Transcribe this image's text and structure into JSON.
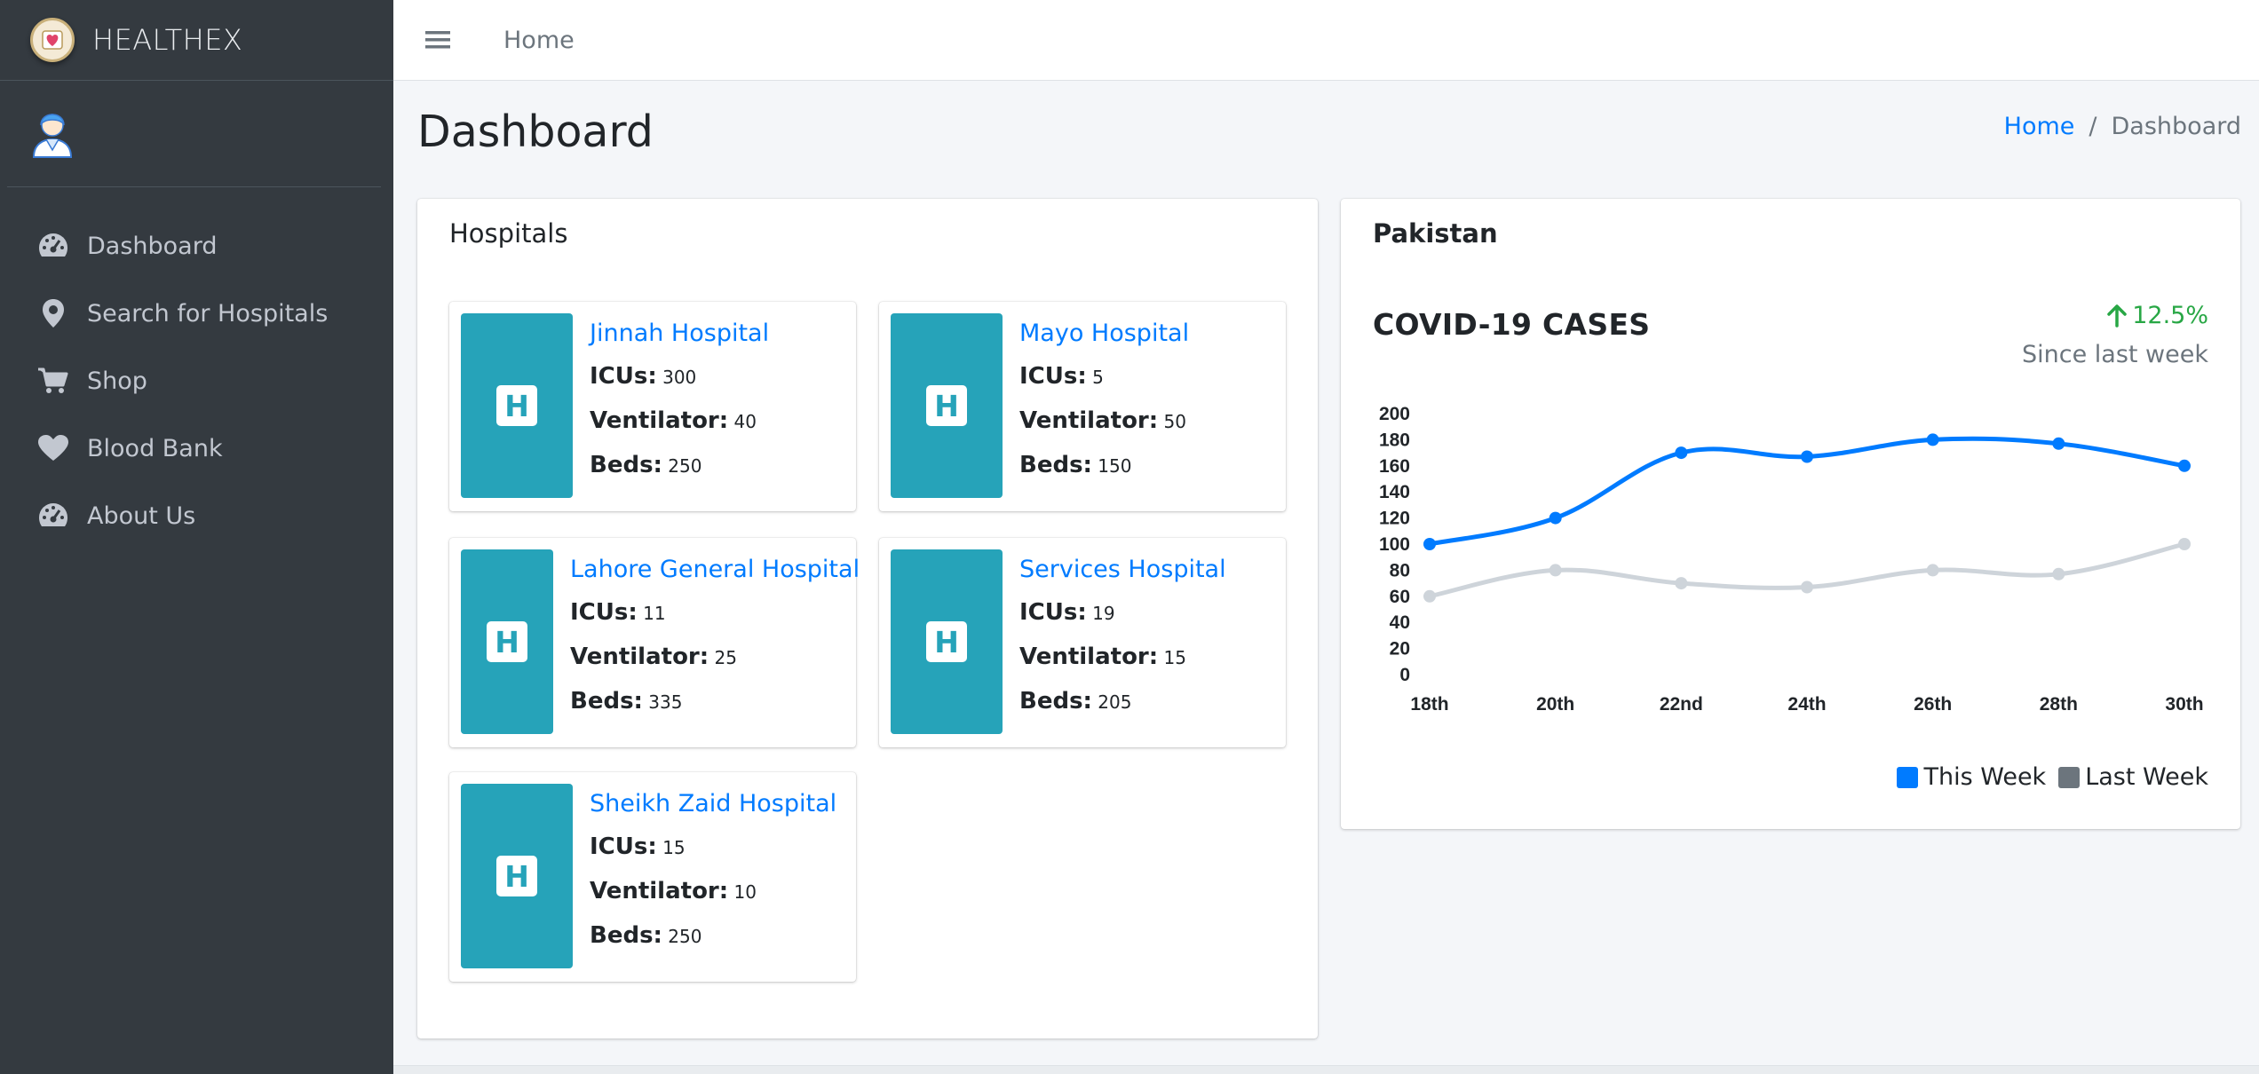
{
  "brand": {
    "name": "HEALTHEX"
  },
  "sidebar": {
    "items": [
      {
        "label": "Dashboard",
        "icon": "tachometer-icon"
      },
      {
        "label": "Search for Hospitals",
        "icon": "map-pin-icon"
      },
      {
        "label": "Shop",
        "icon": "cart-icon"
      },
      {
        "label": "Blood Bank",
        "icon": "heart-icon"
      },
      {
        "label": "About Us",
        "icon": "tachometer-icon"
      }
    ]
  },
  "header": {
    "home_link": "Home"
  },
  "page": {
    "title": "Dashboard",
    "breadcrumb": {
      "home": "Home",
      "separator": "/",
      "current": "Dashboard"
    }
  },
  "hospitals": {
    "title": "Hospitals",
    "icu_label": "ICUs:",
    "vent_label": "Ventilator:",
    "beds_label": "Beds:",
    "items": [
      {
        "name": "Jinnah Hospital",
        "icus": "300",
        "ventilator": "40",
        "beds": "250"
      },
      {
        "name": "Mayo Hospital",
        "icus": "5",
        "ventilator": "50",
        "beds": "150"
      },
      {
        "name": "Lahore General Hospital",
        "icus": "11",
        "ventilator": "25",
        "beds": "335"
      },
      {
        "name": "Services Hospital",
        "icus": "19",
        "ventilator": "15",
        "beds": "205"
      },
      {
        "name": "Sheikh Zaid Hospital",
        "icus": "15",
        "ventilator": "10",
        "beds": "250"
      }
    ]
  },
  "pakistan": {
    "title": "Pakistan",
    "chart_title": "COVID-19 CASES",
    "trend_value": "12.5%",
    "trend_caption": "Since last week",
    "colors": {
      "this_week": "#007bff",
      "last_week": "#ced4da",
      "last_week_swatch": "#6c757d",
      "trend": "#28a745"
    }
  },
  "chart_data": {
    "type": "line",
    "categories": [
      "18th",
      "20th",
      "22nd",
      "24th",
      "26th",
      "28th",
      "30th"
    ],
    "series": [
      {
        "name": "This Week",
        "values": [
          100,
          120,
          170,
          167,
          180,
          177,
          160
        ]
      },
      {
        "name": "Last Week",
        "values": [
          60,
          80,
          70,
          67,
          80,
          77,
          100
        ]
      }
    ],
    "y_ticks": [
      "0",
      "20",
      "40",
      "60",
      "80",
      "100",
      "120",
      "140",
      "160",
      "180",
      "200"
    ],
    "ylim": [
      0,
      200
    ],
    "grid": false,
    "legend": "bottom-right"
  }
}
